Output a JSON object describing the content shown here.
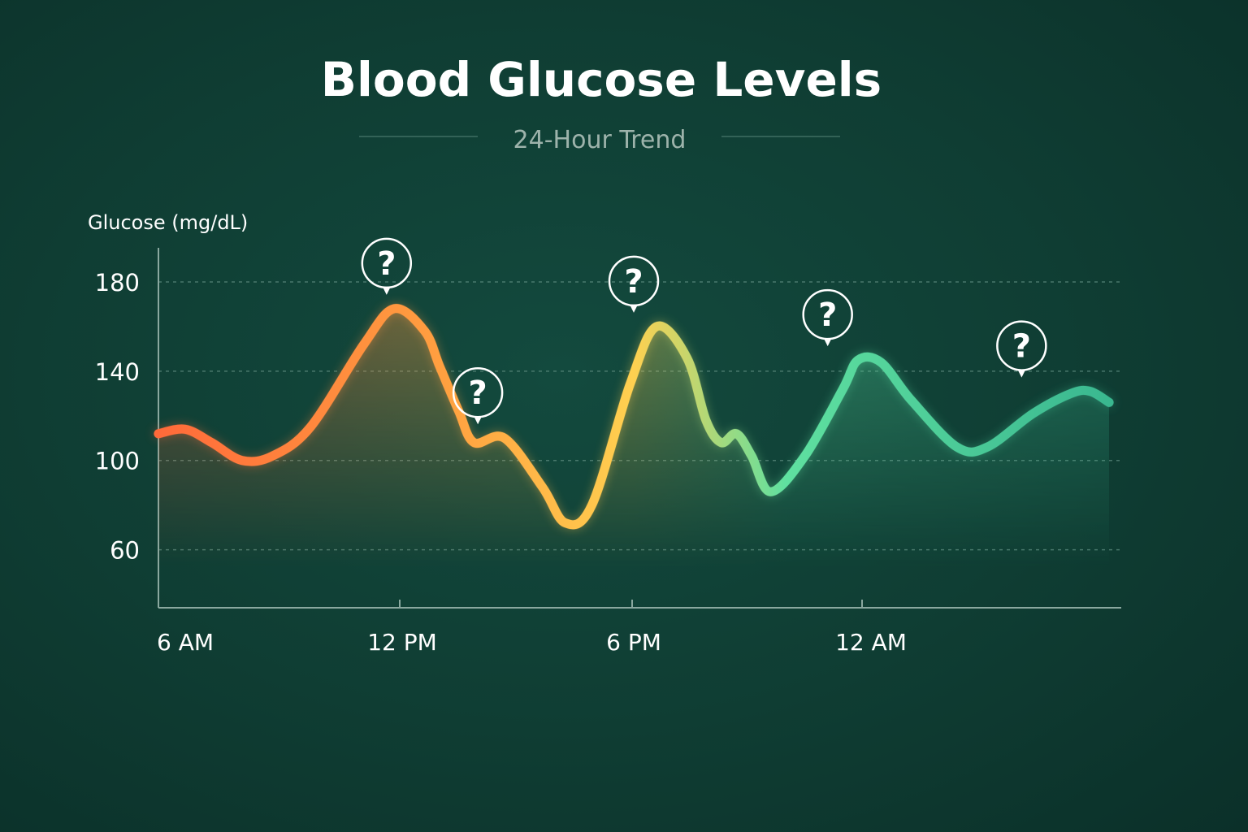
{
  "chart_data": {
    "type": "line",
    "title": "Blood Glucose Levels",
    "subtitle": "24-Hour Trend",
    "ylabel": "Glucose (mg/dL)",
    "xlabel": "",
    "ylim": [
      34,
      188
    ],
    "y_ticks": [
      60,
      100,
      140,
      180
    ],
    "x_ticks": [
      "6 AM",
      "12 PM",
      "6 PM",
      "12 AM"
    ],
    "grid": true,
    "x_range_hours": [
      6,
      31
    ],
    "x_axis_end_hours": 31.1,
    "gradient_colors": [
      "#ff6a3a",
      "#ffa040",
      "#ffd050",
      "#5fe0a0",
      "#3ab890"
    ],
    "series": [
      {
        "x_hours": [
          6.0,
          6.7,
          7.4,
          8.2,
          9.0,
          10.0,
          11.4,
          12.2,
          13.0,
          13.4,
          13.9,
          14.3,
          15.1,
          16.1,
          16.7,
          17.4,
          18.4,
          19.1,
          19.9,
          20.4,
          20.8,
          21.2,
          21.6,
          22.1,
          23.0,
          24.0,
          24.4,
          25.0,
          25.8,
          27.0,
          27.8,
          29.0,
          30.0,
          30.5,
          31.0
        ],
        "y": [
          112,
          114,
          108,
          100,
          102,
          115,
          152,
          168,
          158,
          142,
          122,
          108,
          110,
          88,
          72,
          80,
          134,
          160,
          146,
          118,
          108,
          112,
          102,
          86,
          102,
          132,
          145,
          144,
          127,
          106,
          106,
          121,
          130,
          131,
          126
        ]
      }
    ],
    "annotations": [
      {
        "label": "?",
        "x_hours": 12.0,
        "y": 168
      },
      {
        "label": "?",
        "x_hours": 14.4,
        "y": 110
      },
      {
        "label": "?",
        "x_hours": 18.5,
        "y": 160
      },
      {
        "label": "?",
        "x_hours": 23.6,
        "y": 145
      },
      {
        "label": "?",
        "x_hours": 28.7,
        "y": 131
      }
    ]
  }
}
